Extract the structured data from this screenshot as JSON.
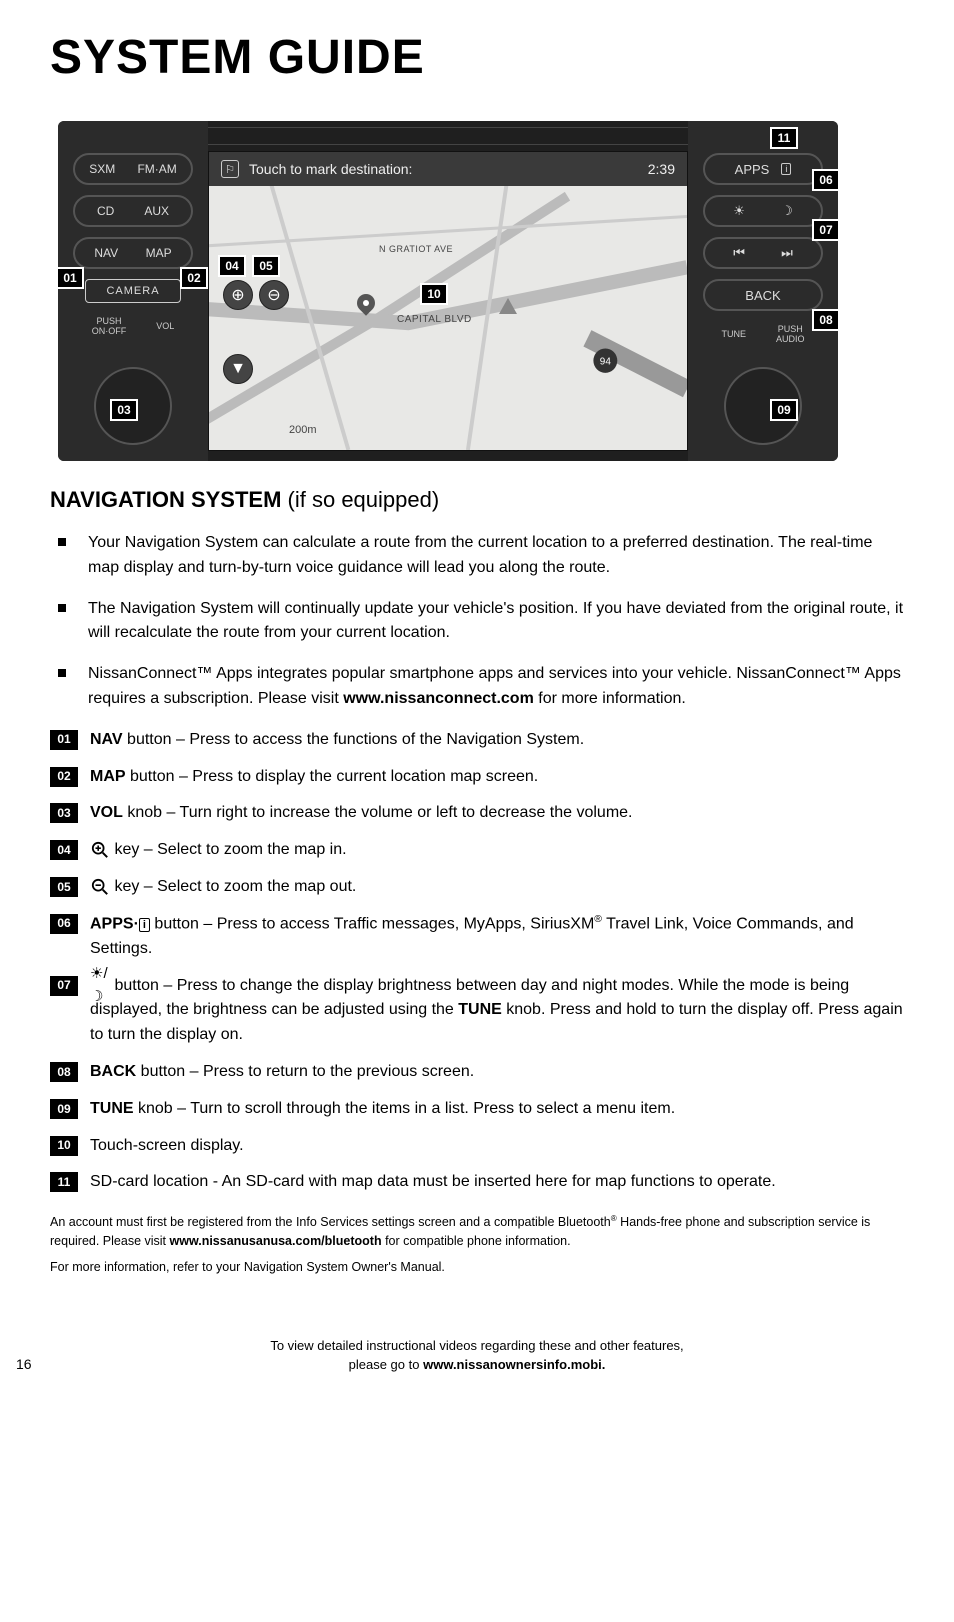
{
  "page": {
    "title": "SYSTEM GUIDE",
    "section_heading_bold": "NAVIGATION SYSTEM",
    "section_heading_light": " (if so equipped)",
    "page_number": "16"
  },
  "diagram": {
    "left_buttons": {
      "sxm": "SXM",
      "fmam": "FM·AM",
      "cd": "CD",
      "aux": "AUX",
      "nav": "NAV",
      "map": "MAP",
      "camera": "CAMERA",
      "push_onoff": "PUSH\nON·OFF",
      "vol": "VOL"
    },
    "right_buttons": {
      "apps": "APPS",
      "back": "BACK",
      "tune": "TUNE",
      "push_audio": "PUSH\nAUDIO"
    },
    "screen": {
      "prompt": "Touch to mark destination:",
      "clock": "2:39",
      "street1": "N GRATIOT AVE",
      "street2": "CAPITAL BLVD",
      "scale": "200m",
      "interstate": "94"
    },
    "callouts": {
      "c01": "01",
      "c02": "02",
      "c03": "03",
      "c04": "04",
      "c05": "05",
      "c06": "06",
      "c07": "07",
      "c08": "08",
      "c09": "09",
      "c10": "10",
      "c11": "11"
    }
  },
  "bullets": [
    "Your Navigation System can calculate a route from the current location to a preferred destination. The real-time map display and turn-by-turn voice guidance will lead you along the route.",
    "The Navigation System will continually update your vehicle's position. If you have deviated from the original route, it will recalculate the route from your current location.",
    "NissanConnect™ Apps integrates popular smartphone apps and services into your vehicle. NissanConnect™ Apps requires a subscription. Please visit <b>www.nissanconnect.com</b> for more information."
  ],
  "numitems": [
    {
      "n": "01",
      "label": "NAV",
      "rest": " button – Press to access the functions of the Navigation System."
    },
    {
      "n": "02",
      "label": "MAP",
      "rest": " button – Press to display the current location map screen."
    },
    {
      "n": "03",
      "label": "VOL",
      "rest": " knob – Turn right to increase the volume or left to decrease the volume."
    },
    {
      "n": "04",
      "icon": "zoom-in",
      "rest": " key – Select to zoom the map in."
    },
    {
      "n": "05",
      "icon": "zoom-out",
      "rest": " key – Select to zoom the map out."
    },
    {
      "n": "06",
      "label": "APPS·",
      "info": true,
      "rest": " button – Press to access Traffic messages, MyApps, SiriusXM<sup>®</sup> Travel Link, Voice Commands, and Settings."
    },
    {
      "n": "07",
      "icon": "bright",
      "rest": " button – Press to change the display brightness between day and night modes. While the mode is being displayed, the brightness can be adjusted using the <b>TUNE</b> knob. Press and hold to turn the display off. Press again to turn the display on."
    },
    {
      "n": "08",
      "label": "BACK",
      "rest": " button – Press to return to the previous screen."
    },
    {
      "n": "09",
      "label": "TUNE",
      "rest": " knob – Turn to scroll through the items in a list. Press to select a menu item."
    },
    {
      "n": "10",
      "rest": "Touch-screen display."
    },
    {
      "n": "11",
      "rest": "SD-card location - An SD-card with map data must be inserted here for map functions to operate."
    }
  ],
  "fineprint": [
    "An account must first be registered from the Info Services settings screen and a compatible Bluetooth<sup>®</sup> Hands-free phone and subscription service is required. Please visit <b>www.nissanusanusa.com/bluetooth</b> for compatible phone information.",
    "For more information, refer to your Navigation System Owner's Manual."
  ],
  "footer": {
    "line1": "To view detailed instructional videos regarding these and other features,",
    "line2_pre": "please go to ",
    "line2_link": "www.nissanownersinfo.mobi."
  }
}
